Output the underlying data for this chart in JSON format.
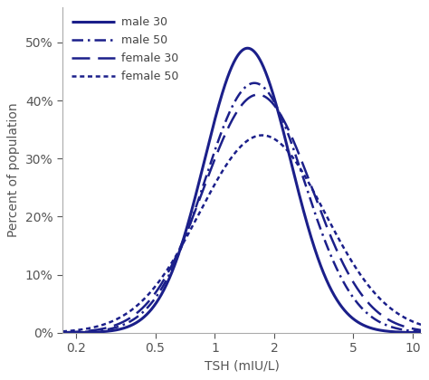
{
  "color": "#1b1f8a",
  "xlabel": "TSH (mIU/L)",
  "ylabel": "Percent of population",
  "xlim": [
    0.17,
    11.0
  ],
  "ylim": [
    0,
    0.56
  ],
  "yticks": [
    0,
    0.1,
    0.2,
    0.3,
    0.4,
    0.5
  ],
  "xtick_vals": [
    0.2,
    0.5,
    1.0,
    2.0,
    5.0,
    10.0
  ],
  "series": [
    {
      "label": "male 30",
      "linestyle": "solid",
      "lw": 2.2,
      "mu_log": 0.38,
      "sigma_log": 0.5,
      "peak": 0.49
    },
    {
      "label": "male 50",
      "linestyle": "dashdot",
      "lw": 1.8,
      "mu_log": 0.46,
      "sigma_log": 0.58,
      "peak": 0.43
    },
    {
      "label": "female 30",
      "linestyle": "dashed",
      "lw": 1.8,
      "mu_log": 0.5,
      "sigma_log": 0.63,
      "peak": 0.41
    },
    {
      "label": "female 50",
      "linestyle": "fine_dashed",
      "lw": 1.8,
      "mu_log": 0.55,
      "sigma_log": 0.73,
      "peak": 0.34
    }
  ]
}
